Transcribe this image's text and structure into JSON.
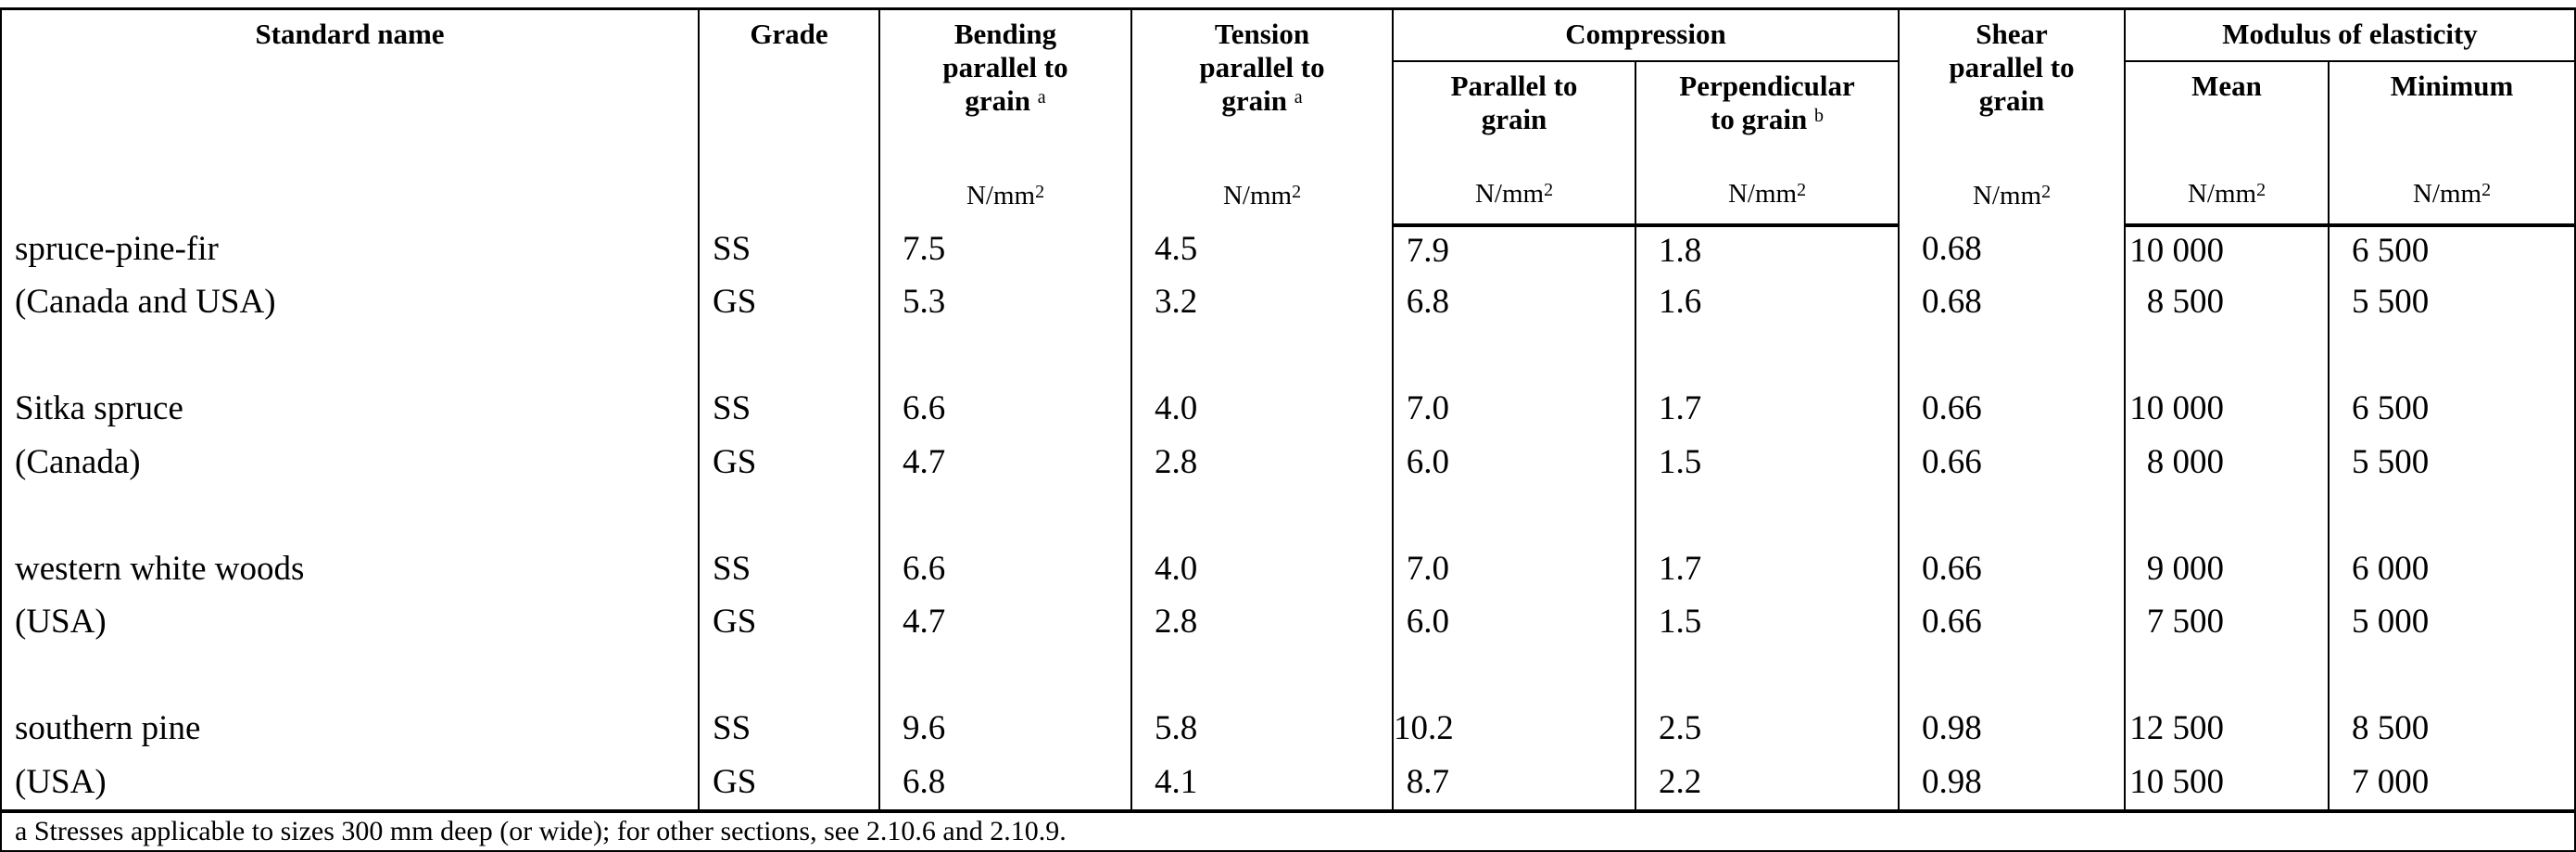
{
  "headers": {
    "standard_name": "Standard name",
    "grade": "Grade",
    "bending": [
      "Bending",
      "parallel to",
      "grain"
    ],
    "bending_note": "a",
    "tension": [
      "Tension",
      "parallel to",
      "grain"
    ],
    "tension_note": "a",
    "compression": "Compression",
    "comp_parallel": [
      "Parallel to",
      "grain"
    ],
    "comp_perp": [
      "Perpendicular",
      "to grain"
    ],
    "comp_perp_note": "b",
    "shear": [
      "Shear",
      "parallel to",
      "grain"
    ],
    "modulus": "Modulus of elasticity",
    "mean": "Mean",
    "minimum": "Minimum",
    "unit": "N/mm",
    "unit_exp": "2"
  },
  "rows": [
    {
      "name": "spruce-pine-fir",
      "grade": "SS",
      "bending": "7.5",
      "tension": "4.5",
      "comp_par": "7.9",
      "comp_perp": "1.8",
      "shear": "0.68",
      "mean": "10 000",
      "min": "6 500"
    },
    {
      "name": "(Canada and USA)",
      "grade": "GS",
      "bending": "5.3",
      "tension": "3.2",
      "comp_par": "6.8",
      "comp_perp": "1.6",
      "shear": "0.68",
      "mean": "8 500",
      "min": "5 500"
    },
    {
      "name": "Sitka spruce",
      "grade": "SS",
      "bending": "6.6",
      "tension": "4.0",
      "comp_par": "7.0",
      "comp_perp": "1.7",
      "shear": "0.66",
      "mean": "10 000",
      "min": "6 500"
    },
    {
      "name": "(Canada)",
      "grade": "GS",
      "bending": "4.7",
      "tension": "2.8",
      "comp_par": "6.0",
      "comp_perp": "1.5",
      "shear": "0.66",
      "mean": "8 000",
      "min": "5 500"
    },
    {
      "name": "western white woods",
      "grade": "SS",
      "bending": "6.6",
      "tension": "4.0",
      "comp_par": "7.0",
      "comp_perp": "1.7",
      "shear": "0.66",
      "mean": "9 000",
      "min": "6 000"
    },
    {
      "name": "(USA)",
      "grade": "GS",
      "bending": "4.7",
      "tension": "2.8",
      "comp_par": "6.0",
      "comp_perp": "1.5",
      "shear": "0.66",
      "mean": "7 500",
      "min": "5 000"
    },
    {
      "name": "southern pine",
      "grade": "SS",
      "bending": "9.6",
      "tension": "5.8",
      "comp_par": "10.2",
      "comp_perp": "2.5",
      "shear": "0.98",
      "mean": "12 500",
      "min": "8 500"
    },
    {
      "name": "(USA)",
      "grade": "GS",
      "bending": "6.8",
      "tension": "4.1",
      "comp_par": "8.7",
      "comp_perp": "2.2",
      "shear": "0.98",
      "mean": "10 500",
      "min": "7 000"
    }
  ],
  "footnote": "a  Stresses applicable to sizes 300 mm deep (or wide); for other sections, see 2.10.6 and 2.10.9."
}
